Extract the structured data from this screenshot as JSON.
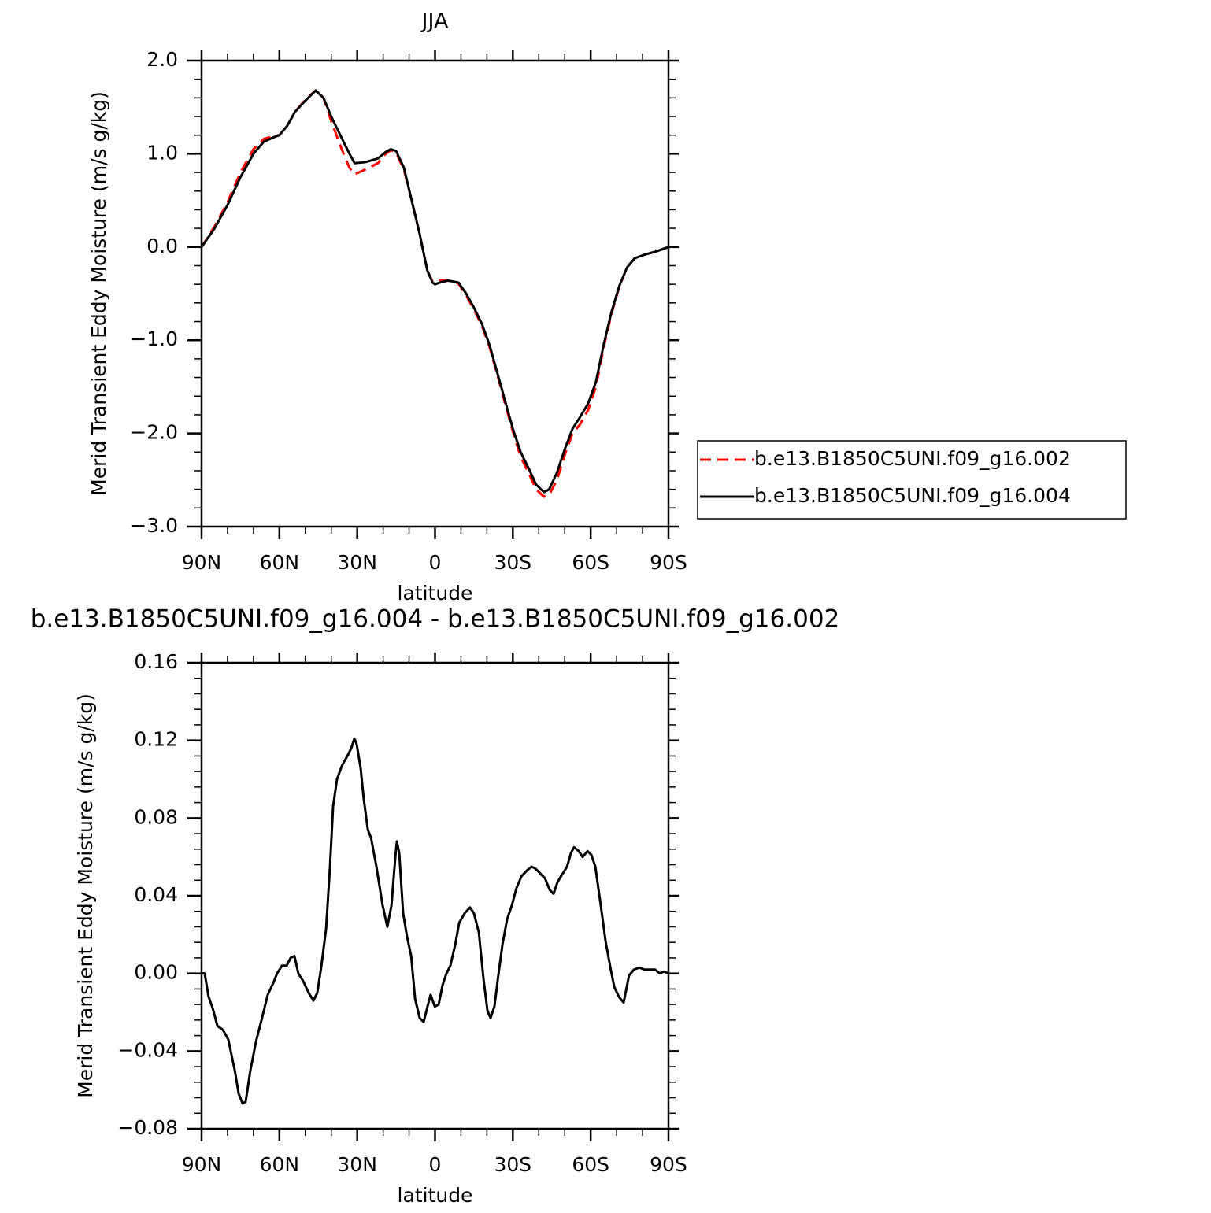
{
  "chart_data": [
    {
      "type": "line",
      "title": "JJA",
      "x_label": "latitude",
      "y_label": "Merid Transient Eddy Moisture (m/s g/kg)",
      "xlim": [
        90,
        -90
      ],
      "ylim": [
        -3,
        2
      ],
      "xticks": [
        {
          "value": 90,
          "label": "90N"
        },
        {
          "value": 60,
          "label": "60N"
        },
        {
          "value": 30,
          "label": "30N"
        },
        0,
        {
          "value": -30,
          "label": "30S"
        },
        {
          "value": -60,
          "label": "60S"
        },
        {
          "value": -90,
          "label": "90S"
        }
      ],
      "yticks": [
        {
          "value": 2,
          "label": "2.0"
        },
        {
          "value": 1,
          "label": "1.0"
        },
        {
          "value": 0,
          "label": "0.0"
        },
        {
          "value": -1,
          "label": "−1.0"
        },
        {
          "value": -2,
          "label": "−2.0"
        },
        {
          "value": -3,
          "label": "−3.0"
        }
      ],
      "legend": "outside-right",
      "x": [
        90,
        85,
        80,
        75,
        70,
        66,
        62,
        60,
        57,
        54,
        50,
        46,
        43,
        40,
        36,
        33,
        31,
        27,
        22,
        19,
        17,
        15,
        12,
        9,
        6,
        3,
        1,
        0,
        -2,
        -5,
        -9,
        -12,
        -15,
        -18,
        -21,
        -24,
        -27,
        -30,
        -33,
        -36,
        -39,
        -42,
        -44,
        -47,
        -50,
        -53,
        -56,
        -59,
        -62,
        -65,
        -68,
        -71,
        -74,
        -77,
        -81,
        -85,
        -90
      ],
      "series": [
        {
          "name": "b.e13.B1850C5UNI.f09_g16.002",
          "color": "#ff0000",
          "style": "dashed",
          "values": [
            0,
            0.22,
            0.48,
            0.8,
            1.05,
            1.16,
            1.19,
            1.2,
            1.3,
            1.45,
            1.58,
            1.68,
            1.6,
            1.35,
            1.05,
            0.85,
            0.78,
            0.83,
            0.9,
            1.0,
            1.04,
            1.01,
            0.83,
            0.5,
            0.15,
            -0.25,
            -0.37,
            -0.38,
            -0.36,
            -0.36,
            -0.39,
            -0.52,
            -0.67,
            -0.84,
            -1.07,
            -1.37,
            -1.68,
            -1.98,
            -2.25,
            -2.42,
            -2.6,
            -2.68,
            -2.66,
            -2.5,
            -2.23,
            -2.0,
            -1.9,
            -1.75,
            -1.5,
            -1.08,
            -0.72,
            -0.43,
            -0.22,
            -0.12,
            -0.08,
            -0.05,
            0
          ]
        },
        {
          "name": "b.e13.B1850C5UNI.f09_g16.004",
          "color": "#000000",
          "style": "solid",
          "values": [
            0,
            0.2,
            0.45,
            0.75,
            1.0,
            1.13,
            1.18,
            1.2,
            1.3,
            1.45,
            1.57,
            1.68,
            1.6,
            1.4,
            1.17,
            1.0,
            0.9,
            0.91,
            0.95,
            1.02,
            1.05,
            1.03,
            0.85,
            0.5,
            0.15,
            -0.25,
            -0.38,
            -0.4,
            -0.38,
            -0.36,
            -0.38,
            -0.5,
            -0.65,
            -0.82,
            -1.05,
            -1.35,
            -1.65,
            -1.95,
            -2.2,
            -2.37,
            -2.55,
            -2.63,
            -2.6,
            -2.42,
            -2.17,
            -1.95,
            -1.82,
            -1.68,
            -1.45,
            -1.05,
            -0.7,
            -0.42,
            -0.22,
            -0.12,
            -0.08,
            -0.05,
            0
          ]
        }
      ]
    },
    {
      "type": "line",
      "title": "b.e13.B1850C5UNI.f09_g16.004 - b.e13.B1850C5UNI.f09_g16.002",
      "x_label": "latitude",
      "y_label": "Merid Transient Eddy Moisture (m/s g/kg)",
      "xlim": [
        90,
        -90
      ],
      "ylim": [
        -0.08,
        0.16
      ],
      "xticks": [
        {
          "value": 90,
          "label": "90N"
        },
        {
          "value": 60,
          "label": "60N"
        },
        {
          "value": 30,
          "label": "30N"
        },
        0,
        {
          "value": -30,
          "label": "30S"
        },
        {
          "value": -60,
          "label": "60S"
        },
        {
          "value": -90,
          "label": "90S"
        }
      ],
      "yticks": [
        0.16,
        0.12,
        0.08,
        0.04,
        {
          "value": 0,
          "label": "0.00"
        },
        {
          "value": -0.04,
          "label": "−0.04"
        },
        {
          "value": -0.08,
          "label": "−0.08"
        }
      ],
      "x": [
        90,
        88.8,
        87.3,
        85.7,
        83.9,
        81.8,
        79.7,
        77.2,
        75.7,
        74.2,
        73,
        71.2,
        69,
        66.9,
        64.5,
        62.4,
        60.9,
        59,
        57.2,
        55.7,
        54.2,
        52.7,
        50.8,
        48.7,
        46.9,
        45.4,
        43.9,
        42,
        40.5,
        39.3,
        37.8,
        35.9,
        33.8,
        32.3,
        31.1,
        30.2,
        28.7,
        27.5,
        25.9,
        24.7,
        22.6,
        20.2,
        18.4,
        16.8,
        15.3,
        14.7,
        13.8,
        12.3,
        10.8,
        9.2,
        7.7,
        5.9,
        4.4,
        2.9,
        1.7,
        0.1,
        -1.4,
        -2.9,
        -4.4,
        -5.9,
        -7.8,
        -9.3,
        -11.4,
        -13.5,
        -15,
        -16.9,
        -18.7,
        -20.2,
        -21.4,
        -22.9,
        -24.4,
        -26,
        -27.8,
        -29.6,
        -31.4,
        -33.3,
        -35.4,
        -37.2,
        -38.7,
        -40.2,
        -42.4,
        -44.2,
        -45.7,
        -47.2,
        -49,
        -50.9,
        -52.4,
        -53.6,
        -55.4,
        -56.9,
        -58.8,
        -60.3,
        -61.8,
        -63.9,
        -65.7,
        -67.6,
        -69.1,
        -70.9,
        -72.7,
        -74.8,
        -76.7,
        -78.8,
        -80.6,
        -82.7,
        -84.8,
        -86.7,
        -88.2,
        -90
      ],
      "series": [
        {
          "name": "difference",
          "color": "#000000",
          "style": "solid",
          "values": [
            0,
            0,
            -0.012,
            -0.018,
            -0.027,
            -0.029,
            -0.034,
            -0.05,
            -0.062,
            -0.067,
            -0.066,
            -0.05,
            -0.035,
            -0.024,
            -0.011,
            -0.005,
            0,
            0.004,
            0.004,
            0.008,
            0.009,
            0,
            -0.004,
            -0.01,
            -0.014,
            -0.01,
            0.003,
            0.023,
            0.055,
            0.086,
            0.1,
            0.107,
            0.112,
            0.116,
            0.121,
            0.118,
            0.106,
            0.09,
            0.074,
            0.07,
            0.055,
            0.035,
            0.024,
            0.035,
            0.06,
            0.068,
            0.062,
            0.031,
            0.019,
            0.009,
            -0.013,
            -0.023,
            -0.025,
            -0.017,
            -0.011,
            -0.017,
            -0.016,
            -0.006,
            0,
            0.004,
            0.015,
            0.026,
            0.031,
            0.034,
            0.031,
            0.021,
            -0.003,
            -0.019,
            -0.023,
            -0.017,
            -0.001,
            0.015,
            0.028,
            0.035,
            0.044,
            0.05,
            0.053,
            0.055,
            0.054,
            0.052,
            0.049,
            0.043,
            0.041,
            0.047,
            0.051,
            0.055,
            0.062,
            0.065,
            0.063,
            0.06,
            0.063,
            0.061,
            0.055,
            0.035,
            0.017,
            0.003,
            -0.007,
            -0.012,
            -0.015,
            -0.001,
            0.002,
            0.003,
            0.002,
            0.002,
            0.002,
            0,
            0.001,
            0
          ]
        }
      ]
    }
  ]
}
